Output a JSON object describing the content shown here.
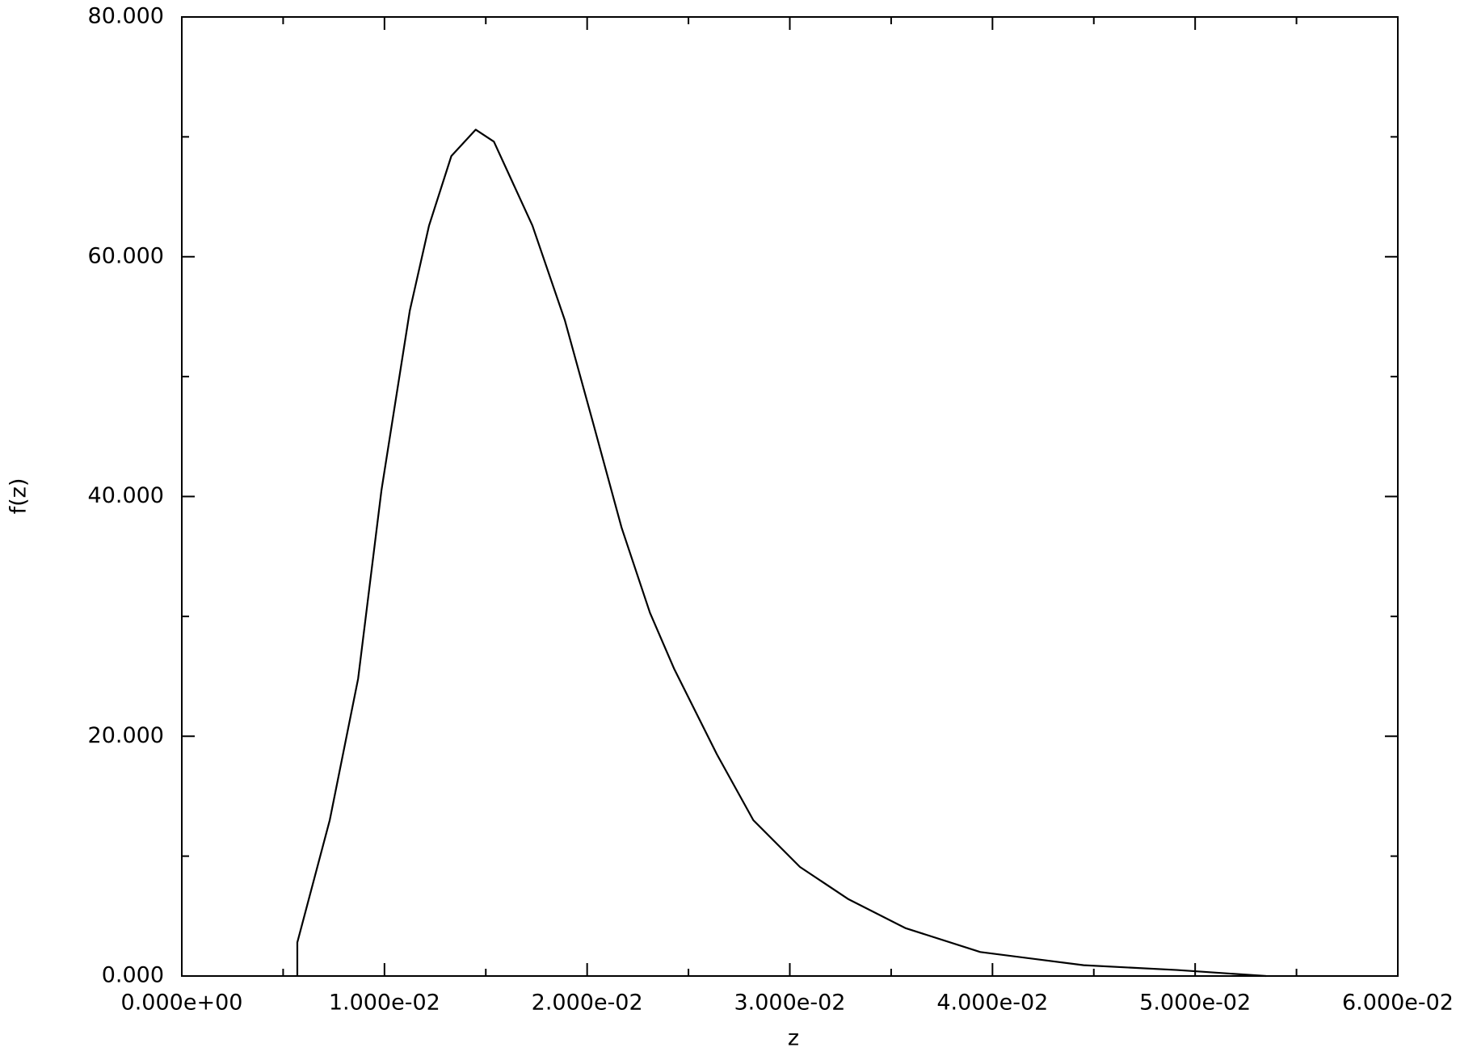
{
  "chart_data": {
    "type": "line",
    "x_label": "z",
    "y_label": "f(z)",
    "x": [
      0.0057,
      0.0057,
      0.0073,
      0.0087,
      0.00985,
      0.01125,
      0.0122,
      0.0133,
      0.0145,
      0.0154,
      0.0173,
      0.0189,
      0.0203,
      0.0217,
      0.0231,
      0.0243,
      0.0264,
      0.0282,
      0.0305,
      0.0329,
      0.0357,
      0.0394,
      0.0445,
      0.0491,
      0.0535
    ],
    "series": [
      {
        "color": "#000000",
        "values": [
          0,
          2.8,
          13.0,
          24.8,
          40.5,
          55.5,
          62.6,
          68.4,
          70.6,
          69.6,
          62.6,
          54.7,
          46.1,
          37.4,
          30.3,
          25.6,
          18.5,
          13.0,
          9.1,
          6.4,
          4.0,
          2.0,
          0.9,
          0.5,
          0
        ]
      }
    ],
    "xlim": [
      0,
      0.06
    ],
    "ylim": [
      0,
      80
    ],
    "xticks": [
      {
        "value": 0,
        "label": "0.000e+00"
      },
      {
        "value": 0.01,
        "label": "1.000e-02"
      },
      {
        "value": 0.02,
        "label": "2.000e-02"
      },
      {
        "value": 0.03,
        "label": "3.000e-02"
      },
      {
        "value": 0.04,
        "label": "4.000e-02"
      },
      {
        "value": 0.05,
        "label": "5.000e-02"
      },
      {
        "value": 0.06,
        "label": "6.000e-02"
      }
    ],
    "yticks": [
      {
        "value": 0,
        "label": "0.000"
      },
      {
        "value": 20,
        "label": "20.000"
      },
      {
        "value": 40,
        "label": "40.000"
      },
      {
        "value": 60,
        "label": "60.000"
      },
      {
        "value": 80,
        "label": "80.000"
      }
    ],
    "xminor": [
      0.005,
      0.015,
      0.025,
      0.035,
      0.045,
      0.055
    ],
    "yminor": [
      10,
      30,
      50,
      70
    ],
    "grid": false
  }
}
